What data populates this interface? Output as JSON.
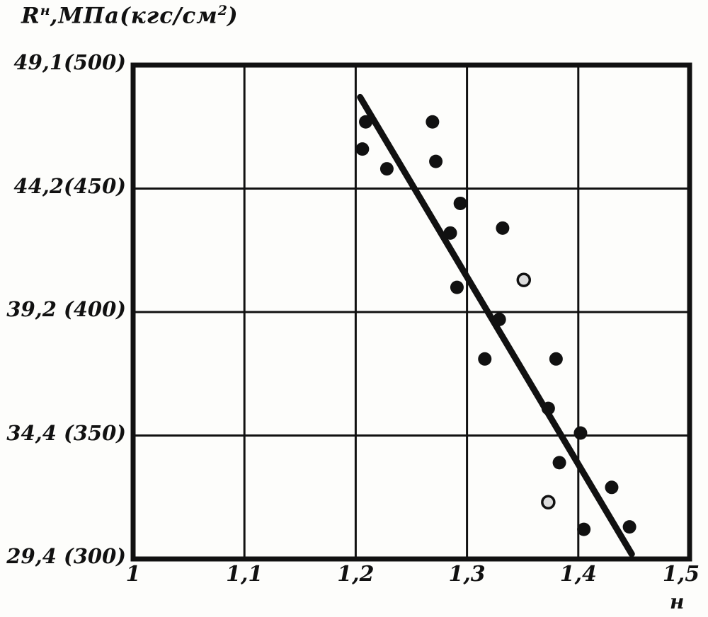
{
  "chart_data": {
    "type": "scatter",
    "y_axis_title_full": "Rн, МПа (кгс/см2)",
    "y_axis_title_parts": {
      "base": "R",
      "sup": "н",
      "units": ",МПа(кгс/см",
      "units_sup": "2",
      "close": ")"
    },
    "x_axis_title": "н",
    "xlim": [
      1.0,
      1.5
    ],
    "ylim": [
      300,
      500
    ],
    "grid": true,
    "ink_color": "#111111",
    "background": "#fdfdfb",
    "x_ticks": [
      {
        "label": "1",
        "value": 1.0
      },
      {
        "label": "1,1",
        "value": 1.1
      },
      {
        "label": "1,2",
        "value": 1.2
      },
      {
        "label": "1,3",
        "value": 1.3
      },
      {
        "label": "1,4",
        "value": 1.4
      },
      {
        "label": "1,5",
        "value": 1.5
      }
    ],
    "y_ticks": [
      {
        "label": "49,1(500)",
        "value": 500
      },
      {
        "label": "44,2(450)",
        "value": 450
      },
      {
        "label": "39,2 (400)",
        "value": 400
      },
      {
        "label": "34,4 (350)",
        "value": 350
      },
      {
        "label": "29,4 (300)",
        "value": 300
      }
    ],
    "series": [
      {
        "name": "experimental-points-filled",
        "marker": "filled-circle",
        "points": [
          [
            1.209,
            477
          ],
          [
            1.206,
            466
          ],
          [
            1.228,
            458
          ],
          [
            1.269,
            477
          ],
          [
            1.272,
            461
          ],
          [
            1.294,
            444
          ],
          [
            1.285,
            432
          ],
          [
            1.332,
            434
          ],
          [
            1.291,
            410
          ],
          [
            1.329,
            397
          ],
          [
            1.316,
            381
          ],
          [
            1.38,
            381
          ],
          [
            1.373,
            361
          ],
          [
            1.402,
            351
          ],
          [
            1.383,
            339
          ],
          [
            1.43,
            329
          ],
          [
            1.405,
            312
          ],
          [
            1.446,
            313
          ]
        ]
      },
      {
        "name": "experimental-points-open",
        "marker": "open-circle",
        "points": [
          [
            1.351,
            413
          ],
          [
            1.373,
            323
          ]
        ]
      }
    ],
    "trend_line": {
      "x1": 1.204,
      "y1": 487,
      "x2": 1.448,
      "y2": 302
    }
  }
}
